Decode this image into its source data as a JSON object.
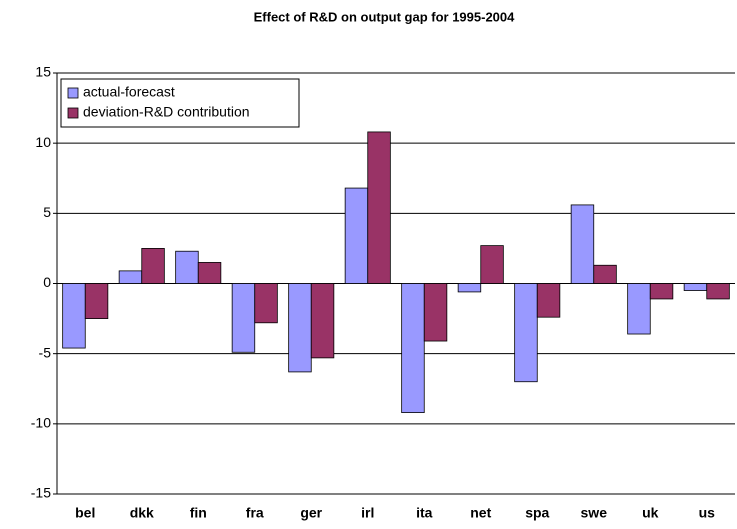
{
  "chart_data": {
    "type": "bar",
    "title": "Effect of R&D on output gap for 1995-2004",
    "categories": [
      "bel",
      "dkk",
      "fin",
      "fra",
      "ger",
      "irl",
      "ita",
      "net",
      "spa",
      "swe",
      "uk",
      "us"
    ],
    "series": [
      {
        "name": "actual-forecast",
        "color": "#9999ff",
        "values": [
          -4.6,
          0.9,
          2.3,
          -4.9,
          -6.3,
          6.8,
          -9.2,
          -0.6,
          -7.0,
          5.6,
          -3.6,
          -0.5
        ]
      },
      {
        "name": "deviation-R&D contribution",
        "color": "#993366",
        "values": [
          -2.5,
          2.5,
          1.5,
          -2.8,
          -5.3,
          10.8,
          -4.1,
          2.7,
          -2.4,
          1.3,
          -1.1,
          -1.1
        ]
      }
    ],
    "ylim": [
      -15,
      15
    ],
    "yticks": [
      -15,
      -10,
      -5,
      0,
      5,
      10,
      15
    ],
    "grid": true,
    "legend": "top-left"
  }
}
